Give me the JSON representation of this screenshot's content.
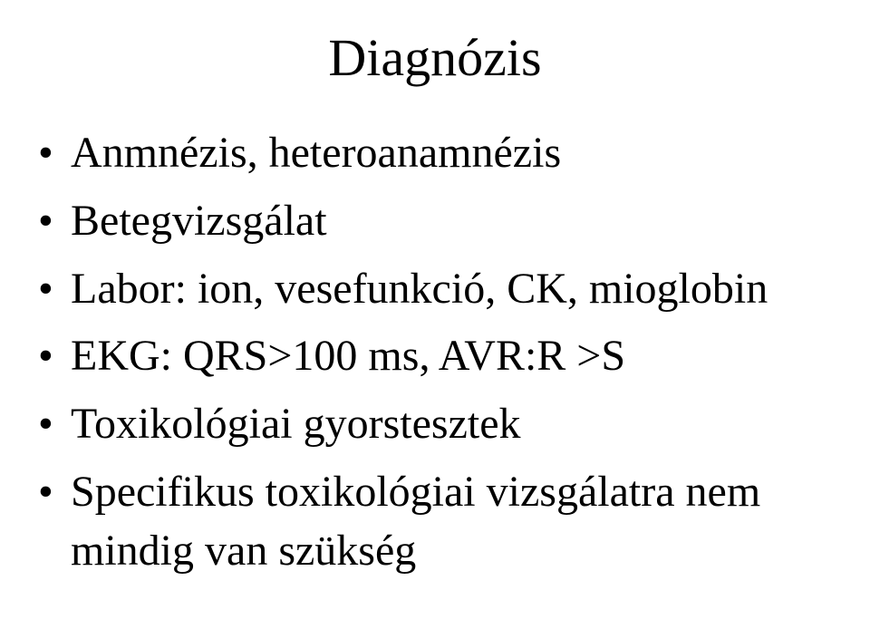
{
  "slide": {
    "title": "Diagnózis",
    "bullets": [
      "Anmnézis, heteroanamnézis",
      "Betegvizsgálat",
      "Labor: ion, vesefunkció, CK, mioglobin",
      "EKG: QRS>100 ms, AVR:R >S",
      "Toxikológiai gyorstesztek",
      "Specifikus toxikológiai vizsgálatra nem mindig van szükség"
    ],
    "style": {
      "background_color": "#ffffff",
      "text_color": "#000000",
      "title_fontsize": 58,
      "bullet_fontsize": 48,
      "font_family": "Times New Roman"
    }
  }
}
